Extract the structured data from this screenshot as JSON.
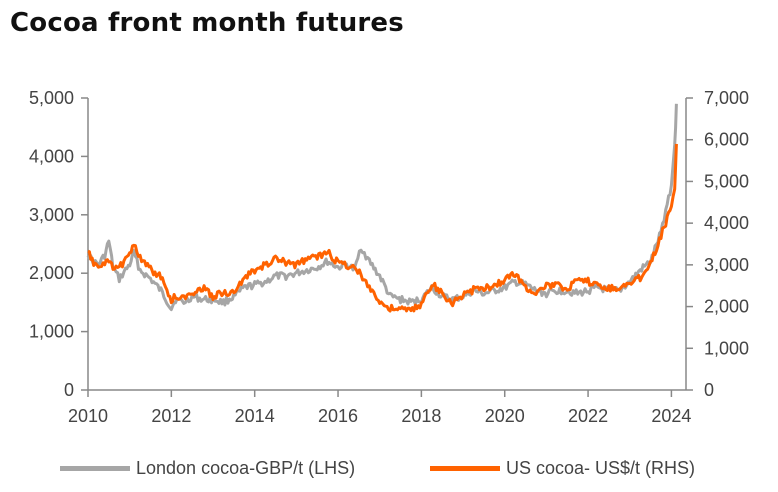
{
  "page": {
    "title": "Cocoa front month futures"
  },
  "colors": {
    "london": "#a6a6a6",
    "us": "#ff6200",
    "axis": "#888888"
  },
  "chart_data": {
    "type": "line",
    "title": "Cocoa front month futures",
    "xlim": [
      2010,
      2024.35
    ],
    "x_ticks": [
      2010,
      2012,
      2014,
      2016,
      2018,
      2020,
      2022,
      2024
    ],
    "y_left": {
      "lim": [
        0,
        5000
      ],
      "ticks": [
        0,
        1000,
        2000,
        3000,
        4000,
        5000
      ],
      "tick_labels": [
        "0",
        "1,000",
        "2,000",
        "3,000",
        "4,000",
        "5,000"
      ]
    },
    "y_right": {
      "lim": [
        0,
        7000
      ],
      "ticks": [
        0,
        1000,
        2000,
        3000,
        4000,
        5000,
        6000,
        7000
      ],
      "tick_labels": [
        "0",
        "1,000",
        "2,000",
        "3,000",
        "4,000",
        "5,000",
        "6,000",
        "7,000"
      ]
    },
    "legend_position": "bottom",
    "series": [
      {
        "name": "London cocoa-GBP/t (LHS)",
        "axis": "left",
        "x": [
          2010.0,
          2010.1,
          2010.25,
          2010.4,
          2010.5,
          2010.6,
          2010.75,
          2010.9,
          2011.0,
          2011.1,
          2011.25,
          2011.5,
          2011.75,
          2012.0,
          2012.1,
          2012.3,
          2012.5,
          2012.75,
          2013.0,
          2013.25,
          2013.5,
          2013.75,
          2014.0,
          2014.25,
          2014.5,
          2014.75,
          2015.0,
          2015.25,
          2015.5,
          2015.75,
          2016.0,
          2016.2,
          2016.4,
          2016.55,
          2016.75,
          2017.0,
          2017.25,
          2017.5,
          2017.75,
          2018.0,
          2018.25,
          2018.5,
          2018.75,
          2019.0,
          2019.25,
          2019.5,
          2019.75,
          2020.0,
          2020.25,
          2020.5,
          2020.75,
          2021.0,
          2021.25,
          2021.5,
          2021.75,
          2022.0,
          2022.25,
          2022.5,
          2022.75,
          2023.0,
          2023.25,
          2023.5,
          2023.75,
          2023.9,
          2024.0,
          2024.08,
          2024.12
        ],
        "y": [
          2350,
          2200,
          2150,
          2300,
          2550,
          2100,
          1900,
          2050,
          2150,
          2350,
          2050,
          1900,
          1700,
          1400,
          1550,
          1500,
          1600,
          1550,
          1550,
          1500,
          1600,
          1750,
          1800,
          1850,
          1950,
          1950,
          2000,
          2050,
          2100,
          2200,
          2100,
          2150,
          2050,
          2450,
          2200,
          1950,
          1600,
          1550,
          1500,
          1550,
          1750,
          1600,
          1550,
          1600,
          1700,
          1650,
          1700,
          1750,
          1850,
          1800,
          1700,
          1650,
          1700,
          1700,
          1650,
          1700,
          1750,
          1700,
          1700,
          1850,
          2050,
          2200,
          2700,
          3200,
          3500,
          4200,
          4900
        ]
      },
      {
        "name": "US cocoa- US$/t (RHS)",
        "axis": "right",
        "x": [
          2010.0,
          2010.1,
          2010.25,
          2010.4,
          2010.5,
          2010.6,
          2010.75,
          2010.9,
          2011.0,
          2011.1,
          2011.25,
          2011.5,
          2011.75,
          2012.0,
          2012.1,
          2012.3,
          2012.5,
          2012.75,
          2013.0,
          2013.25,
          2013.5,
          2013.75,
          2014.0,
          2014.25,
          2014.5,
          2014.75,
          2015.0,
          2015.25,
          2015.5,
          2015.75,
          2016.0,
          2016.2,
          2016.4,
          2016.55,
          2016.75,
          2017.0,
          2017.25,
          2017.5,
          2017.75,
          2018.0,
          2018.25,
          2018.5,
          2018.75,
          2019.0,
          2019.25,
          2019.5,
          2019.75,
          2020.0,
          2020.25,
          2020.5,
          2020.75,
          2021.0,
          2021.25,
          2021.5,
          2021.75,
          2022.0,
          2022.25,
          2022.5,
          2022.75,
          2023.0,
          2023.25,
          2023.5,
          2023.75,
          2023.9,
          2024.0,
          2024.08,
          2024.12
        ],
        "y": [
          3300,
          3100,
          2950,
          3000,
          3100,
          2900,
          2950,
          3100,
          3300,
          3550,
          3150,
          2900,
          2700,
          2150,
          2250,
          2200,
          2350,
          2450,
          2250,
          2350,
          2300,
          2700,
          2850,
          3000,
          3150,
          3050,
          3000,
          3150,
          3200,
          3300,
          3050,
          3000,
          2950,
          2750,
          2500,
          2100,
          1950,
          1950,
          1900,
          2050,
          2550,
          2300,
          2100,
          2250,
          2400,
          2450,
          2500,
          2650,
          2800,
          2450,
          2350,
          2500,
          2500,
          2450,
          2600,
          2600,
          2500,
          2450,
          2450,
          2550,
          2700,
          3050,
          3700,
          4100,
          4400,
          4900,
          5900
        ]
      }
    ]
  }
}
